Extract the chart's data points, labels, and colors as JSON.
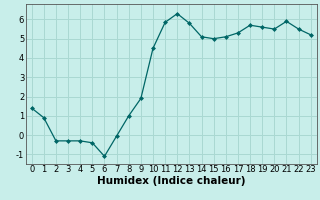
{
  "x": [
    0,
    1,
    2,
    3,
    4,
    5,
    6,
    7,
    8,
    9,
    10,
    11,
    12,
    13,
    14,
    15,
    16,
    17,
    18,
    19,
    20,
    21,
    22,
    23
  ],
  "y": [
    1.4,
    0.9,
    -0.3,
    -0.3,
    -0.3,
    -0.4,
    -1.1,
    -0.05,
    1.0,
    1.9,
    4.5,
    5.85,
    6.3,
    5.8,
    5.1,
    5.0,
    5.1,
    5.3,
    5.7,
    5.6,
    5.5,
    5.9,
    5.5,
    5.2
  ],
  "line_color": "#006666",
  "marker": "D",
  "marker_size": 2.0,
  "bg_color": "#c8eeea",
  "grid_color": "#aad8d2",
  "xlabel": "Humidex (Indice chaleur)",
  "xlim": [
    -0.5,
    23.5
  ],
  "ylim": [
    -1.5,
    6.8
  ],
  "yticks": [
    -1,
    0,
    1,
    2,
    3,
    4,
    5,
    6
  ],
  "xticks": [
    0,
    1,
    2,
    3,
    4,
    5,
    6,
    7,
    8,
    9,
    10,
    11,
    12,
    13,
    14,
    15,
    16,
    17,
    18,
    19,
    20,
    21,
    22,
    23
  ],
  "tick_label_fontsize": 6.0,
  "xlabel_fontsize": 7.5
}
